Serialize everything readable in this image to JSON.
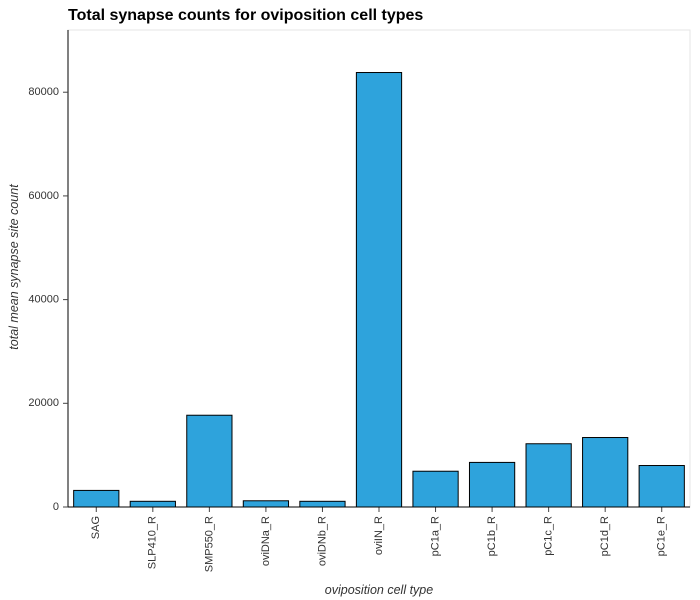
{
  "chart_data": {
    "type": "bar",
    "title": "Total synapse counts for oviposition cell types",
    "xlabel": "oviposition cell type",
    "ylabel": "total mean synapse site count",
    "categories": [
      "SAG",
      "SLP410_R",
      "SMP550_R",
      "oviDNa_R",
      "oviDNb_R",
      "oviIN_R",
      "pC1a_R",
      "pC1b_R",
      "pC1c_R",
      "pC1d_R",
      "pC1e_R"
    ],
    "values": [
      3200,
      1100,
      17700,
      1200,
      1100,
      83800,
      6900,
      8600,
      12200,
      13400,
      8000
    ],
    "ylim": [
      0,
      92000
    ],
    "yticks": [
      0,
      20000,
      40000,
      60000,
      80000
    ],
    "ytick_labels": [
      "0",
      "20000",
      "40000",
      "60000",
      "80000"
    ],
    "bar_color": "#2ea3dc",
    "bar_edge_color": "#000000",
    "grid": false
  }
}
